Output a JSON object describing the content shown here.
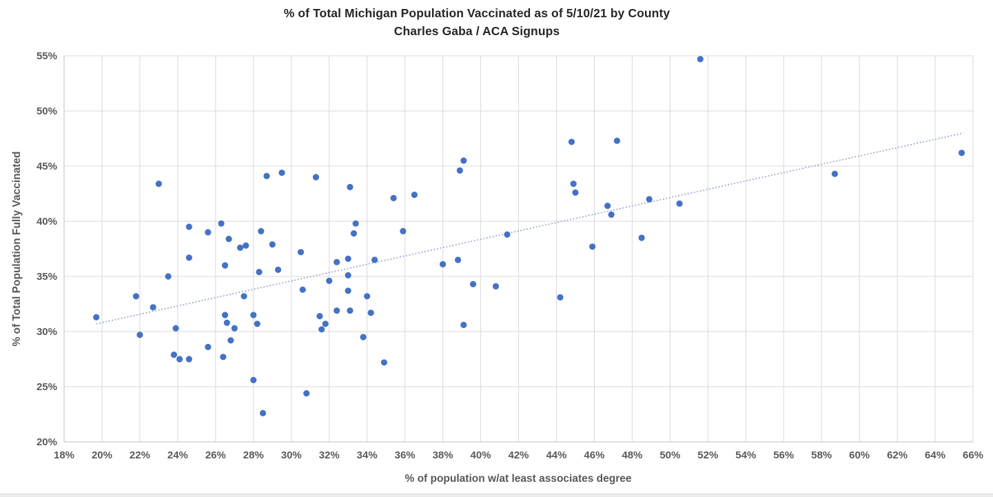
{
  "chart_data": {
    "type": "scatter",
    "title": "% of Total Michigan Population Vaccinated as of 5/10/21 by County",
    "subtitle": "Charles Gaba / ACA Signups",
    "x_axis": {
      "label": "% of population w/at least associates degree",
      "ticks": [
        {
          "value": 18,
          "label": "18%"
        },
        {
          "value": 20,
          "label": "20%"
        },
        {
          "value": 22,
          "label": "22%"
        },
        {
          "value": 24,
          "label": "24%"
        },
        {
          "value": 26,
          "label": "26%"
        },
        {
          "value": 28,
          "label": "28%"
        },
        {
          "value": 30,
          "label": "30%"
        },
        {
          "value": 32,
          "label": "32%"
        },
        {
          "value": 34,
          "label": "34%"
        },
        {
          "value": 36,
          "label": "36%"
        },
        {
          "value": 38,
          "label": "38%"
        },
        {
          "value": 40,
          "label": "40%"
        },
        {
          "value": 42,
          "label": "42%"
        },
        {
          "value": 44,
          "label": "44%"
        },
        {
          "value": 46,
          "label": "46%"
        },
        {
          "value": 48,
          "label": "48%"
        },
        {
          "value": 50,
          "label": "50%"
        },
        {
          "value": 52,
          "label": "52%"
        },
        {
          "value": 54,
          "label": "54%"
        },
        {
          "value": 56,
          "label": "56%"
        },
        {
          "value": 58,
          "label": "58%"
        },
        {
          "value": 60,
          "label": "60%"
        },
        {
          "value": 62,
          "label": "62%"
        },
        {
          "value": 64,
          "label": "64%"
        },
        {
          "value": 66,
          "label": "66%"
        }
      ]
    },
    "y_axis": {
      "label": "% of Total Population Fully Vaccinated",
      "ticks": [
        {
          "value": 20,
          "label": "20%"
        },
        {
          "value": 25,
          "label": "25%"
        },
        {
          "value": 30,
          "label": "30%"
        },
        {
          "value": 35,
          "label": "35%"
        },
        {
          "value": 40,
          "label": "40%"
        },
        {
          "value": 45,
          "label": "45%"
        },
        {
          "value": 50,
          "label": "50%"
        },
        {
          "value": 55,
          "label": "55%"
        }
      ]
    },
    "xlim": [
      18,
      66
    ],
    "ylim": [
      20,
      55
    ],
    "grid": true,
    "legend": "none",
    "points": [
      [
        19.7,
        31.3
      ],
      [
        21.8,
        33.2
      ],
      [
        22.0,
        29.7
      ],
      [
        22.7,
        32.2
      ],
      [
        23.0,
        43.4
      ],
      [
        23.5,
        35.0
      ],
      [
        23.8,
        27.9
      ],
      [
        23.9,
        30.3
      ],
      [
        24.1,
        27.5
      ],
      [
        24.6,
        27.5
      ],
      [
        24.6,
        36.7
      ],
      [
        24.6,
        39.5
      ],
      [
        25.6,
        28.6
      ],
      [
        25.6,
        39.0
      ],
      [
        26.3,
        39.8
      ],
      [
        26.4,
        27.7
      ],
      [
        26.5,
        31.5
      ],
      [
        26.5,
        36.0
      ],
      [
        26.6,
        30.8
      ],
      [
        26.7,
        38.4
      ],
      [
        26.8,
        29.2
      ],
      [
        27.0,
        30.3
      ],
      [
        27.3,
        37.6
      ],
      [
        27.5,
        33.2
      ],
      [
        27.6,
        37.8
      ],
      [
        28.0,
        25.6
      ],
      [
        28.0,
        31.5
      ],
      [
        28.2,
        30.7
      ],
      [
        28.3,
        35.4
      ],
      [
        28.4,
        39.1
      ],
      [
        28.5,
        22.6
      ],
      [
        28.7,
        44.1
      ],
      [
        29.0,
        37.9
      ],
      [
        29.3,
        35.6
      ],
      [
        29.5,
        44.4
      ],
      [
        30.5,
        37.2
      ],
      [
        30.6,
        33.8
      ],
      [
        30.8,
        24.4
      ],
      [
        31.3,
        44.0
      ],
      [
        31.5,
        31.4
      ],
      [
        31.6,
        30.2
      ],
      [
        31.8,
        30.7
      ],
      [
        32.0,
        34.6
      ],
      [
        32.4,
        31.9
      ],
      [
        32.4,
        36.3
      ],
      [
        33.0,
        33.7
      ],
      [
        33.0,
        35.1
      ],
      [
        33.0,
        36.6
      ],
      [
        33.1,
        31.9
      ],
      [
        33.1,
        43.1
      ],
      [
        33.3,
        38.9
      ],
      [
        33.4,
        39.8
      ],
      [
        33.8,
        29.5
      ],
      [
        34.0,
        33.2
      ],
      [
        34.2,
        31.7
      ],
      [
        34.4,
        36.5
      ],
      [
        34.9,
        27.2
      ],
      [
        35.4,
        42.1
      ],
      [
        35.9,
        39.1
      ],
      [
        36.5,
        42.4
      ],
      [
        38.0,
        36.1
      ],
      [
        38.8,
        36.5
      ],
      [
        38.9,
        44.6
      ],
      [
        39.1,
        45.5
      ],
      [
        39.1,
        30.6
      ],
      [
        39.6,
        34.3
      ],
      [
        40.8,
        34.1
      ],
      [
        41.4,
        38.8
      ],
      [
        44.2,
        33.1
      ],
      [
        44.8,
        47.2
      ],
      [
        44.9,
        43.4
      ],
      [
        45.0,
        42.6
      ],
      [
        45.9,
        37.7
      ],
      [
        46.7,
        41.4
      ],
      [
        46.9,
        40.6
      ],
      [
        47.2,
        47.3
      ],
      [
        48.5,
        38.5
      ],
      [
        48.9,
        42.0
      ],
      [
        50.5,
        41.6
      ],
      [
        51.6,
        54.7
      ],
      [
        58.7,
        44.3
      ],
      [
        65.4,
        46.2
      ]
    ],
    "trendline": {
      "type": "linear",
      "style": "dotted",
      "points": [
        [
          19.7,
          30.7
        ],
        [
          65.5,
          48.0
        ]
      ]
    },
    "colors": {
      "point": "#4472C4",
      "trend": "#8A9CC8",
      "grid": "#D9D9D9",
      "axis_line": "#BFBFBF",
      "tick_text": "#595959",
      "axis_title_text": "#595959",
      "title_text": "#262626"
    }
  }
}
